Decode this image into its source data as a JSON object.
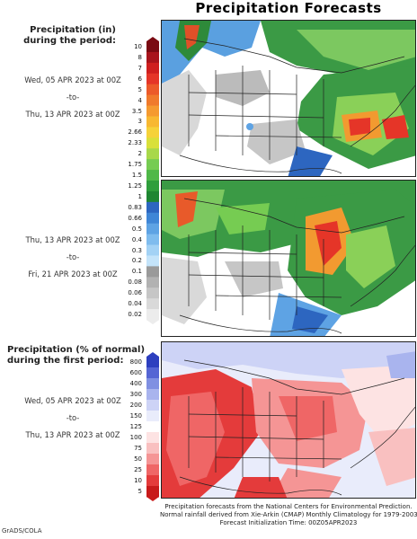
{
  "title": "Precipitation Forecasts",
  "left_panel": {
    "precip_label_1": "Precipitation (in)",
    "precip_label_2": "during the period:",
    "period1": {
      "start": "Wed, 05 APR 2023 at 00Z",
      "to": "-to-",
      "end": "Thu, 13 APR 2023 at 00Z"
    },
    "period2": {
      "start": "Thu, 13 APR 2023 at 00Z",
      "to": "-to-",
      "end": "Fri, 21 APR 2023 at 00Z"
    },
    "pct_label_1": "Precipitation (% of normal)",
    "pct_label_2": "during the first period:",
    "period3": {
      "start": "Wed, 05 APR 2023 at 00Z",
      "to": "-to-",
      "end": "Thu, 13 APR 2023 at 00Z"
    }
  },
  "precip_scale": {
    "labels": [
      "10",
      "8",
      "7",
      "6",
      "5",
      "4",
      "3.5",
      "3",
      "2.66",
      "2.33",
      "2",
      "1.75",
      "1.5",
      "1.25",
      "1",
      "0.83",
      "0.66",
      "0.5",
      "0.4",
      "0.3",
      "0.2",
      "0.1",
      "0.08",
      "0.06",
      "0.04",
      "0.02"
    ],
    "colors": [
      "#7a0a12",
      "#a8141c",
      "#cf1f1f",
      "#e53528",
      "#ec5a2a",
      "#f07a2c",
      "#f59a30",
      "#f8b832",
      "#f6d23a",
      "#d9e03a",
      "#a8d84a",
      "#76cc52",
      "#4fb848",
      "#2f9e3c",
      "#1f8632",
      "#2d66c0",
      "#3f86d6",
      "#5ea3e4",
      "#7fbcee",
      "#a3d2f5",
      "#c4e4fa",
      "#9a9a9a",
      "#b2b2b2",
      "#c6c6c6",
      "#d9d9d9",
      "#ececec"
    ]
  },
  "pct_scale": {
    "labels": [
      "800",
      "600",
      "400",
      "300",
      "200",
      "150",
      "125",
      "100",
      "75",
      "50",
      "25",
      "10",
      "5"
    ],
    "colors": [
      "#2d3fbf",
      "#5565d4",
      "#8090e2",
      "#a9b4ee",
      "#cdd3f6",
      "#e9ecfb",
      "#ffffff",
      "#fde3e3",
      "#f9c0c0",
      "#f59595",
      "#ef6666",
      "#e43b3b",
      "#c81a1a"
    ]
  },
  "footer": {
    "line1": "Precipitation forecasts from the National Centers for Environmental Prediction.",
    "line2": "Normal rainfall derived from Xie-Arkin (CMAP) Monthly Climatology for 1979-2003.",
    "line3": "Forecast Initialization Time: 00Z05APR2023"
  },
  "credit": "GrADS/COLA"
}
